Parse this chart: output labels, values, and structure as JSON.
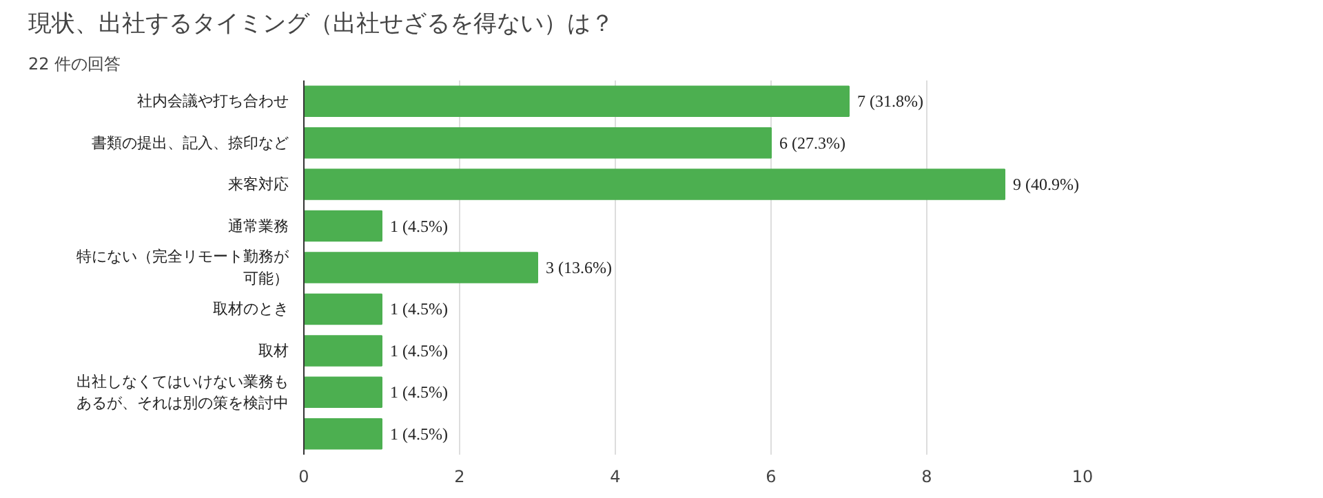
{
  "chart_data": {
    "type": "bar",
    "orientation": "horizontal",
    "title": "現状、出社するタイミング（出社せざるを得ない）は？",
    "subtitle": "22 件の回答",
    "categories": [
      "社内会議や打ち合わせ",
      "書類の提出、記入、捺印など",
      "来客対応",
      "通常業務",
      "特にない（完全リモート勤務が可能）",
      "取材のとき",
      "取材",
      "出社しなくてはいけない業務もあるが、それは別の策を検討中",
      null
    ],
    "values": [
      7,
      6,
      9,
      1,
      3,
      1,
      1,
      1,
      1
    ],
    "value_labels": [
      "7 (31.8%)",
      "6 (27.3%)",
      "9 (40.9%)",
      "1 (4.5%)",
      "3 (13.6%)",
      "1 (4.5%)",
      "1 (4.5%)",
      "1 (4.5%)",
      "1 (4.5%)"
    ],
    "color": "#4caf50",
    "xlim": [
      0,
      10
    ],
    "xticks": [
      0,
      2,
      4,
      6,
      8,
      10
    ],
    "grid": "x"
  }
}
